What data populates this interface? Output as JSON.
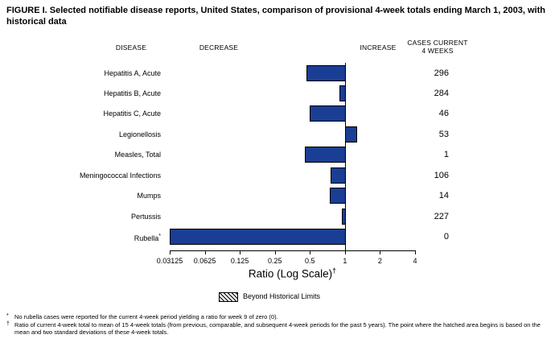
{
  "figure": {
    "title": "FIGURE I. Selected notifiable disease reports, United States, comparison of provisional 4-week totals ending March 1, 2003, with\nhistorical data"
  },
  "columns": {
    "disease": "DISEASE",
    "decrease": "DECREASE",
    "increase": "INCREASE",
    "cases": "CASES CURRENT\n4 WEEKS"
  },
  "chart_data": {
    "type": "bar",
    "orientation": "horizontal",
    "x_scale": "log2",
    "x_ticks": [
      "0.03125",
      "0.0625",
      "0.125",
      "0.25",
      "0.5",
      "1",
      "2",
      "4"
    ],
    "baseline_ratio": 1,
    "bar_color": "#1a3e94",
    "xlabel": {
      "text": "Ratio (Log Scale)",
      "sup": "†"
    },
    "legend_position": "bottom",
    "rows": [
      {
        "disease": "Hepatitis A, Acute",
        "ratio": 0.47,
        "cases": "296"
      },
      {
        "disease": "Hepatitis B, Acute",
        "ratio": 0.9,
        "cases": "284"
      },
      {
        "disease": "Hepatitis C, Acute",
        "ratio": 0.5,
        "cases": "46"
      },
      {
        "disease": "Legionellosis",
        "ratio": 1.26,
        "cases": "53"
      },
      {
        "disease": "Measles, Total",
        "ratio": 0.45,
        "cases": "1"
      },
      {
        "disease": "Meningococcal Infections",
        "ratio": 0.75,
        "cases": "106"
      },
      {
        "disease": "Mumps",
        "ratio": 0.74,
        "cases": "14"
      },
      {
        "disease": "Pertussis",
        "ratio": 0.94,
        "cases": "227"
      },
      {
        "disease": "Rubella",
        "sup": "*",
        "ratio": 0,
        "cases": "0",
        "clipped_to_axis_min": true
      }
    ]
  },
  "legend": {
    "label": "Beyond Historical Limits"
  },
  "footnotes": [
    {
      "marker": "*",
      "text": "No rubella cases were reported for the current 4-week period yielding a ratio for week 9 of zero (0)."
    },
    {
      "marker": "†",
      "text": "Ratio of current 4-week total to mean of 15 4-week totals (from previous, comparable, and subsequent 4-week periods for the past 5 years). The point where the hatched area begins is based on the mean and two standard deviations of these 4-week totals."
    }
  ]
}
